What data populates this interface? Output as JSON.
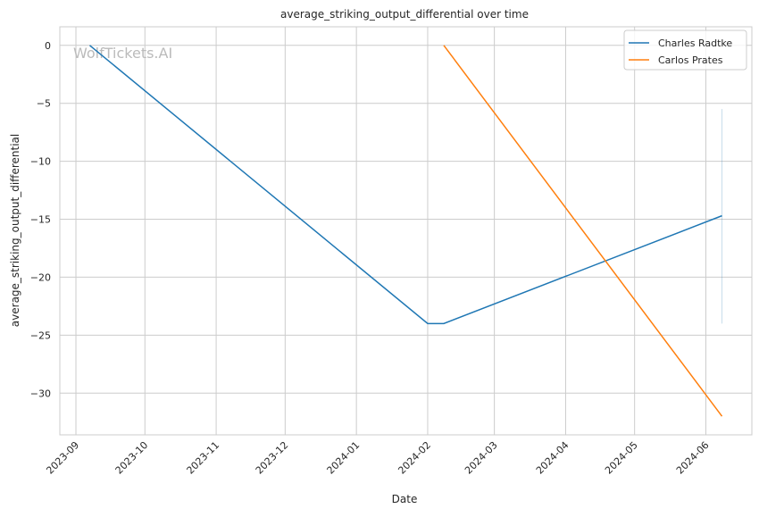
{
  "chart_data": {
    "type": "line",
    "title": "average_striking_output_differential over time",
    "xlabel": "Date",
    "ylabel": "average_striking_output_differential",
    "watermark": "WolfTickets.AI",
    "x_ticks": [
      "2023-09",
      "2023-10",
      "2023-11",
      "2023-12",
      "2024-01",
      "2024-02",
      "2024-03",
      "2024-04",
      "2024-05",
      "2024-06"
    ],
    "y_ticks": [
      0,
      -5,
      -10,
      -15,
      -20,
      -25,
      -30
    ],
    "ylim": [
      -33.6,
      1.6
    ],
    "xlim": [
      "2023-08-25",
      "2024-06-21"
    ],
    "grid": true,
    "legend_position": "top-right",
    "series": [
      {
        "name": "Charles Radtke",
        "color": "#1f77b4",
        "points": [
          [
            "2023-09-07",
            0
          ],
          [
            "2024-02-01",
            -24
          ],
          [
            "2024-02-08",
            -24
          ],
          [
            "2024-06-08",
            -14.7
          ]
        ],
        "band": {
          "x": "2024-06-08",
          "low": -24,
          "high": -5.5
        }
      },
      {
        "name": "Carlos Prates",
        "color": "#ff7f0e",
        "points": [
          [
            "2024-02-08",
            0
          ],
          [
            "2024-06-08",
            -32
          ]
        ]
      }
    ]
  }
}
